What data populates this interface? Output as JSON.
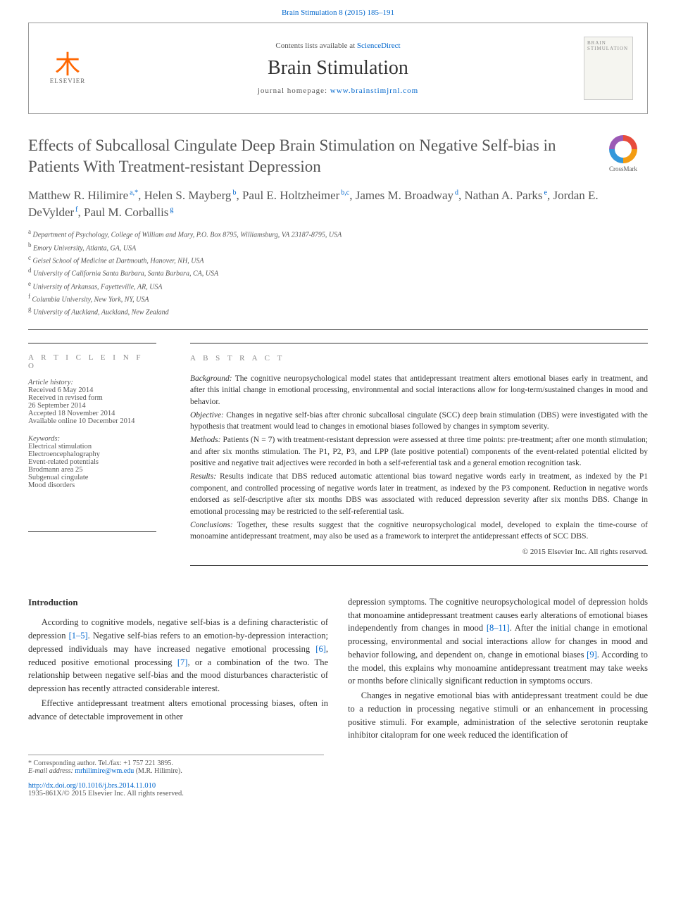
{
  "topLink": {
    "citation": "Brain Stimulation 8 (2015) 185–191",
    "href": "#"
  },
  "header": {
    "publisher": "ELSEVIER",
    "contentsPrefix": "Contents lists available at ",
    "contentsLink": "ScienceDirect",
    "journalName": "Brain Stimulation",
    "homepagePrefix": "journal homepage: ",
    "homepageUrl": "www.brainstimjrnl.com",
    "coverTitle": "BRAIN STIMULATION"
  },
  "title": "Effects of Subcallosal Cingulate Deep Brain Stimulation on Negative Self-bias in Patients With Treatment-resistant Depression",
  "crossmark": "CrossMark",
  "authors": [
    {
      "name": "Matthew R. Hilimire",
      "marks": "a,*"
    },
    {
      "name": "Helen S. Mayberg",
      "marks": "b"
    },
    {
      "name": "Paul E. Holtzheimer",
      "marks": "b,c"
    },
    {
      "name": "James M. Broadway",
      "marks": "d"
    },
    {
      "name": "Nathan A. Parks",
      "marks": "e"
    },
    {
      "name": "Jordan E. DeVylder",
      "marks": "f"
    },
    {
      "name": "Paul M. Corballis",
      "marks": "g"
    }
  ],
  "affiliations": [
    {
      "mark": "a",
      "text": "Department of Psychology, College of William and Mary, P.O. Box 8795, Williamsburg, VA 23187-8795, USA"
    },
    {
      "mark": "b",
      "text": "Emory University, Atlanta, GA, USA"
    },
    {
      "mark": "c",
      "text": "Geisel School of Medicine at Dartmouth, Hanover, NH, USA"
    },
    {
      "mark": "d",
      "text": "University of California Santa Barbara, Santa Barbara, CA, USA"
    },
    {
      "mark": "e",
      "text": "University of Arkansas, Fayetteville, AR, USA"
    },
    {
      "mark": "f",
      "text": "Columbia University, New York, NY, USA"
    },
    {
      "mark": "g",
      "text": "University of Auckland, Auckland, New Zealand"
    }
  ],
  "articleInfo": {
    "heading": "A R T I C L E  I N F O",
    "historyLabel": "Article history:",
    "history": [
      "Received 6 May 2014",
      "Received in revised form",
      "26 September 2014",
      "Accepted 18 November 2014",
      "Available online 10 December 2014"
    ],
    "keywordsLabel": "Keywords:",
    "keywords": [
      "Electrical stimulation",
      "Electroencephalography",
      "Event-related potentials",
      "Brodmann area 25",
      "Subgenual cingulate",
      "Mood disorders"
    ]
  },
  "abstract": {
    "heading": "A B S T R A C T",
    "segments": [
      {
        "label": "Background:",
        "text": " The cognitive neuropsychological model states that antidepressant treatment alters emotional biases early in treatment, and after this initial change in emotional processing, environmental and social interactions allow for long-term/sustained changes in mood and behavior."
      },
      {
        "label": "Objective:",
        "text": " Changes in negative self-bias after chronic subcallosal cingulate (SCC) deep brain stimulation (DBS) were investigated with the hypothesis that treatment would lead to changes in emotional biases followed by changes in symptom severity."
      },
      {
        "label": "Methods:",
        "text": " Patients (N = 7) with treatment-resistant depression were assessed at three time points: pre-treatment; after one month stimulation; and after six months stimulation. The P1, P2, P3, and LPP (late positive potential) components of the event-related potential elicited by positive and negative trait adjectives were recorded in both a self-referential task and a general emotion recognition task."
      },
      {
        "label": "Results:",
        "text": " Results indicate that DBS reduced automatic attentional bias toward negative words early in treatment, as indexed by the P1 component, and controlled processing of negative words later in treatment, as indexed by the P3 component. Reduction in negative words endorsed as self-descriptive after six months DBS was associated with reduced depression severity after six months DBS. Change in emotional processing may be restricted to the self-referential task."
      },
      {
        "label": "Conclusions:",
        "text": " Together, these results suggest that the cognitive neuropsychological model, developed to explain the time-course of monoamine antidepressant treatment, may also be used as a framework to interpret the antidepressant effects of SCC DBS."
      }
    ],
    "copyright": "© 2015 Elsevier Inc. All rights reserved."
  },
  "intro": {
    "heading": "Introduction",
    "p1a": "According to cognitive models, negative self-bias is a defining characteristic of depression ",
    "p1link1": "[1–5]",
    "p1b": ". Negative self-bias refers to an emotion-by-depression interaction; depressed individuals may have increased negative emotional processing ",
    "p1link2": "[6]",
    "p1c": ", reduced positive emotional processing ",
    "p1link3": "[7]",
    "p1d": ", or a combination of the two. The relationship between negative self-bias and the mood disturbances characteristic of depression has recently attracted considerable interest.",
    "p2": "Effective antidepressant treatment alters emotional processing biases, often in advance of detectable improvement in other",
    "p3a": "depression symptoms. The cognitive neuropsychological model of depression holds that monoamine antidepressant treatment causes early alterations of emotional biases independently from changes in mood ",
    "p3link1": "[8–11]",
    "p3b": ". After the initial change in emotional processing, environmental and social interactions allow for changes in mood and behavior following, and dependent on, change in emotional biases ",
    "p3link2": "[9]",
    "p3c": ". According to the model, this explains why monoamine antidepressant treatment may take weeks or months before clinically significant reduction in symptoms occurs.",
    "p4": "Changes in negative emotional bias with antidepressant treatment could be due to a reduction in processing negative stimuli or an enhancement in processing positive stimuli. For example, administration of the selective serotonin reuptake inhibitor citalopram for one week reduced the identification of"
  },
  "footer": {
    "corresponding": "* Corresponding author. Tel./fax: +1 757 221 3895.",
    "emailLabel": "E-mail address: ",
    "email": "mrhilimire@wm.edu",
    "emailSuffix": " (M.R. Hilimire).",
    "doi": "http://dx.doi.org/10.1016/j.brs.2014.11.010",
    "issn": "1935-861X/© 2015 Elsevier Inc. All rights reserved."
  },
  "colors": {
    "link": "#0066cc",
    "text": "#333333",
    "muted": "#555555",
    "rule": "#333333",
    "publisherAccent": "#ff6600"
  },
  "typography": {
    "titleSize": 23,
    "journalNameSize": 28,
    "authorsSize": 17,
    "bodySize": 12.5,
    "abstractSize": 11.5,
    "affilSize": 10
  }
}
